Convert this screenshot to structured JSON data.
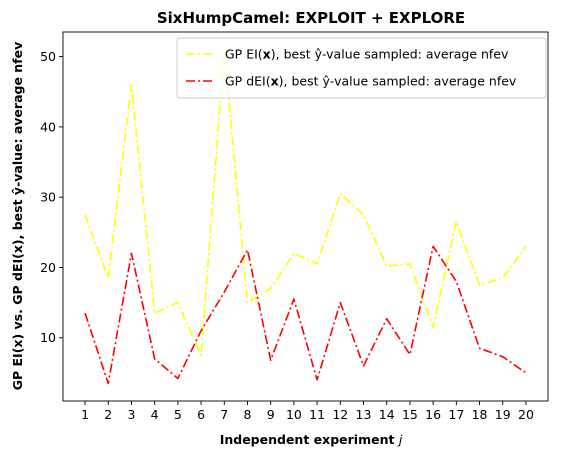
{
  "chart_data": {
    "type": "line",
    "title": "SixHumpCamel: EXPLOIT + EXPLORE",
    "xlabel_main": "Independent experiment ",
    "xlabel_var": "j",
    "ylabel": "GP EI(x) vs. GP dEI(x), best ŷ-value: average nfev",
    "x": [
      1,
      2,
      3,
      4,
      5,
      6,
      7,
      8,
      9,
      10,
      11,
      12,
      13,
      14,
      15,
      16,
      17,
      18,
      19,
      20
    ],
    "xticks": [
      "1",
      "2",
      "3",
      "4",
      "5",
      "6",
      "7",
      "8",
      "9",
      "10",
      "11",
      "12",
      "13",
      "14",
      "15",
      "16",
      "17",
      "18",
      "19",
      "20"
    ],
    "ylim": [
      1,
      53.5
    ],
    "yticks": [
      10,
      20,
      30,
      40,
      50
    ],
    "yticklabels": [
      "10",
      "20",
      "30",
      "40",
      "50"
    ],
    "legend_position": "upper-right",
    "series": [
      {
        "name": "GP EI(x), best ŷ-value sampled: average nfev",
        "legend_prefix": "GP EI(",
        "legend_bold": "x",
        "legend_suffix": "), best ŷ-value sampled: average nfev",
        "color": "#ffff00",
        "style": "dash-dot",
        "values": [
          27.5,
          18.5,
          46,
          13.5,
          15,
          7.5,
          51,
          15,
          17,
          22,
          20.5,
          30.5,
          27.5,
          20.2,
          20.5,
          11.5,
          26.5,
          17.5,
          18.5,
          23
        ]
      },
      {
        "name": "GP dEI(x), best ŷ-value sampled: average nfev",
        "legend_prefix": "GP dEI(",
        "legend_bold": "x",
        "legend_suffix": "), best ŷ-value sampled: average nfev",
        "color": "#ff0000",
        "style": "dash-dot",
        "values": [
          13.5,
          3.5,
          22,
          7,
          4.2,
          11,
          16.5,
          22.5,
          6.8,
          15.5,
          4,
          15,
          6,
          12.7,
          7.6,
          23,
          18,
          8.5,
          7.3,
          5
        ]
      }
    ]
  }
}
